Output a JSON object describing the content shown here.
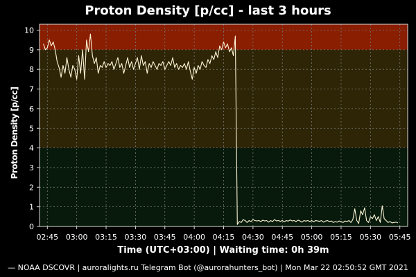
{
  "chart_data": {
    "type": "line",
    "title": "Proton Density [p/cc] - last 3 hours",
    "ylabel": "Proton Density [p/cc]",
    "xlabel": "Time (UTC+03:00) | Waiting time: 0h 39m",
    "footer": "— NOAA DSCOVR | auroralights.ru Telegram Bot (@aurorahunters_bot) | Mon Mar 22 02:50:52 GMT 2021",
    "ylim": [
      0,
      10.3
    ],
    "xlim_minutes": [
      161,
      349
    ],
    "y_ticks": [
      "0",
      "1",
      "2",
      "3",
      "4",
      "5",
      "6",
      "7",
      "8",
      "9",
      "10"
    ],
    "x_ticks": [
      "02:45",
      "03:00",
      "03:15",
      "03:30",
      "03:45",
      "04:00",
      "04:15",
      "04:30",
      "04:45",
      "05:00",
      "05:15",
      "05:30",
      "05:45"
    ],
    "grid": true,
    "bands": [
      {
        "from": 9,
        "to": 10.3,
        "color": "#8a1e00"
      },
      {
        "from": 4,
        "to": 9,
        "color": "#2d2505"
      },
      {
        "from": 0,
        "to": 4,
        "color": "#071a0c"
      }
    ],
    "series": [
      {
        "color": "#fff6d6",
        "points": [
          [
            "02:43",
            9.3
          ],
          [
            "02:44",
            9.0
          ],
          [
            "02:45",
            9.1
          ],
          [
            "02:46",
            9.5
          ],
          [
            "02:47",
            9.2
          ],
          [
            "02:48",
            9.4
          ],
          [
            "02:49",
            9.0
          ],
          [
            "02:50",
            8.4
          ],
          [
            "02:51",
            8.1
          ],
          [
            "02:52",
            7.6
          ],
          [
            "02:53",
            8.2
          ],
          [
            "02:54",
            7.8
          ],
          [
            "02:55",
            8.6
          ],
          [
            "02:56",
            8.0
          ],
          [
            "02:57",
            7.6
          ],
          [
            "02:58",
            8.2
          ],
          [
            "02:59",
            8.0
          ],
          [
            "03:00",
            7.5
          ],
          [
            "03:01",
            8.7
          ],
          [
            "03:02",
            7.8
          ],
          [
            "03:03",
            9.0
          ],
          [
            "03:04",
            7.5
          ],
          [
            "03:05",
            9.5
          ],
          [
            "03:06",
            8.9
          ],
          [
            "03:07",
            9.8
          ],
          [
            "03:08",
            8.7
          ],
          [
            "03:09",
            8.3
          ],
          [
            "03:10",
            8.6
          ],
          [
            "03:11",
            7.8
          ],
          [
            "03:12",
            8.2
          ],
          [
            "03:13",
            8.1
          ],
          [
            "03:14",
            8.4
          ],
          [
            "03:15",
            8.1
          ],
          [
            "03:16",
            8.3
          ],
          [
            "03:17",
            8.2
          ],
          [
            "03:18",
            8.4
          ],
          [
            "03:19",
            8.0
          ],
          [
            "03:20",
            8.3
          ],
          [
            "03:21",
            8.6
          ],
          [
            "03:22",
            8.1
          ],
          [
            "03:23",
            8.3
          ],
          [
            "03:24",
            7.8
          ],
          [
            "03:25",
            8.2
          ],
          [
            "03:26",
            8.6
          ],
          [
            "03:27",
            8.1
          ],
          [
            "03:28",
            8.4
          ],
          [
            "03:29",
            8.0
          ],
          [
            "03:30",
            8.3
          ],
          [
            "03:31",
            8.6
          ],
          [
            "03:32",
            8.0
          ],
          [
            "03:33",
            8.7
          ],
          [
            "03:34",
            8.2
          ],
          [
            "03:35",
            8.4
          ],
          [
            "03:36",
            7.8
          ],
          [
            "03:37",
            8.3
          ],
          [
            "03:38",
            8.1
          ],
          [
            "03:39",
            8.4
          ],
          [
            "03:40",
            8.2
          ],
          [
            "03:41",
            8.0
          ],
          [
            "03:42",
            8.3
          ],
          [
            "03:43",
            8.2
          ],
          [
            "03:44",
            8.4
          ],
          [
            "03:45",
            8.0
          ],
          [
            "03:46",
            8.2
          ],
          [
            "03:47",
            8.4
          ],
          [
            "03:48",
            8.2
          ],
          [
            "03:49",
            8.6
          ],
          [
            "03:50",
            8.1
          ],
          [
            "03:51",
            8.3
          ],
          [
            "03:52",
            8.0
          ],
          [
            "03:53",
            8.2
          ],
          [
            "03:54",
            8.1
          ],
          [
            "03:55",
            8.3
          ],
          [
            "03:56",
            8.0
          ],
          [
            "03:57",
            8.4
          ],
          [
            "03:58",
            7.9
          ],
          [
            "03:59",
            7.5
          ],
          [
            "04:00",
            8.1
          ],
          [
            "04:01",
            7.8
          ],
          [
            "04:02",
            8.2
          ],
          [
            "04:03",
            8.0
          ],
          [
            "04:04",
            8.4
          ],
          [
            "04:05",
            8.2
          ],
          [
            "04:06",
            8.1
          ],
          [
            "04:07",
            8.5
          ],
          [
            "04:08",
            8.3
          ],
          [
            "04:09",
            8.7
          ],
          [
            "04:10",
            8.5
          ],
          [
            "04:11",
            8.9
          ],
          [
            "04:12",
            8.6
          ],
          [
            "04:13",
            9.2
          ],
          [
            "04:14",
            9.0
          ],
          [
            "04:15",
            9.4
          ],
          [
            "04:16",
            9.1
          ],
          [
            "04:17",
            9.3
          ],
          [
            "04:18",
            8.9
          ],
          [
            "04:19",
            9.1
          ],
          [
            "04:20",
            8.7
          ],
          [
            "04:21",
            9.7
          ],
          [
            "04:22",
            0.1
          ],
          [
            "04:23",
            0.25
          ],
          [
            "04:24",
            0.2
          ],
          [
            "04:25",
            0.35
          ],
          [
            "04:26",
            0.3
          ],
          [
            "04:27",
            0.2
          ],
          [
            "04:28",
            0.3
          ],
          [
            "04:29",
            0.25
          ],
          [
            "04:30",
            0.35
          ],
          [
            "04:31",
            0.3
          ],
          [
            "04:32",
            0.28
          ],
          [
            "04:33",
            0.3
          ],
          [
            "04:34",
            0.25
          ],
          [
            "04:35",
            0.32
          ],
          [
            "04:36",
            0.28
          ],
          [
            "04:37",
            0.3
          ],
          [
            "04:38",
            0.22
          ],
          [
            "04:39",
            0.3
          ],
          [
            "04:40",
            0.25
          ],
          [
            "04:41",
            0.35
          ],
          [
            "04:42",
            0.28
          ],
          [
            "04:43",
            0.3
          ],
          [
            "04:44",
            0.26
          ],
          [
            "04:45",
            0.3
          ],
          [
            "04:46",
            0.24
          ],
          [
            "04:47",
            0.3
          ],
          [
            "04:48",
            0.27
          ],
          [
            "04:49",
            0.33
          ],
          [
            "04:50",
            0.28
          ],
          [
            "04:51",
            0.3
          ],
          [
            "04:52",
            0.25
          ],
          [
            "04:53",
            0.32
          ],
          [
            "04:54",
            0.28
          ],
          [
            "04:55",
            0.22
          ],
          [
            "04:56",
            0.3
          ],
          [
            "04:57",
            0.27
          ],
          [
            "04:58",
            0.3
          ],
          [
            "04:59",
            0.25
          ],
          [
            "05:00",
            0.3
          ],
          [
            "05:01",
            0.24
          ],
          [
            "05:02",
            0.3
          ],
          [
            "05:03",
            0.28
          ],
          [
            "05:04",
            0.26
          ],
          [
            "05:05",
            0.3
          ],
          [
            "05:06",
            0.22
          ],
          [
            "05:07",
            0.27
          ],
          [
            "05:08",
            0.3
          ],
          [
            "05:09",
            0.25
          ],
          [
            "05:10",
            0.28
          ],
          [
            "05:11",
            0.2
          ],
          [
            "05:12",
            0.25
          ],
          [
            "05:13",
            0.22
          ],
          [
            "05:14",
            0.28
          ],
          [
            "05:15",
            0.25
          ],
          [
            "05:16",
            0.2
          ],
          [
            "05:17",
            0.28
          ],
          [
            "05:18",
            0.25
          ],
          [
            "05:19",
            0.3
          ],
          [
            "05:20",
            0.2
          ],
          [
            "05:21",
            0.35
          ],
          [
            "05:22",
            0.9
          ],
          [
            "05:23",
            0.3
          ],
          [
            "05:24",
            0.15
          ],
          [
            "05:25",
            0.8
          ],
          [
            "05:26",
            0.6
          ],
          [
            "05:27",
            0.95
          ],
          [
            "05:28",
            0.3
          ],
          [
            "05:29",
            0.2
          ],
          [
            "05:30",
            0.5
          ],
          [
            "05:31",
            0.4
          ],
          [
            "05:32",
            0.6
          ],
          [
            "05:33",
            0.3
          ],
          [
            "05:34",
            0.5
          ],
          [
            "05:35",
            0.2
          ],
          [
            "05:36",
            1.05
          ],
          [
            "05:37",
            0.4
          ],
          [
            "05:38",
            0.3
          ],
          [
            "05:39",
            0.2
          ],
          [
            "05:40",
            0.25
          ],
          [
            "05:41",
            0.18
          ],
          [
            "05:42",
            0.2
          ],
          [
            "05:43",
            0.22
          ],
          [
            "05:44",
            0.18
          ]
        ]
      }
    ]
  }
}
